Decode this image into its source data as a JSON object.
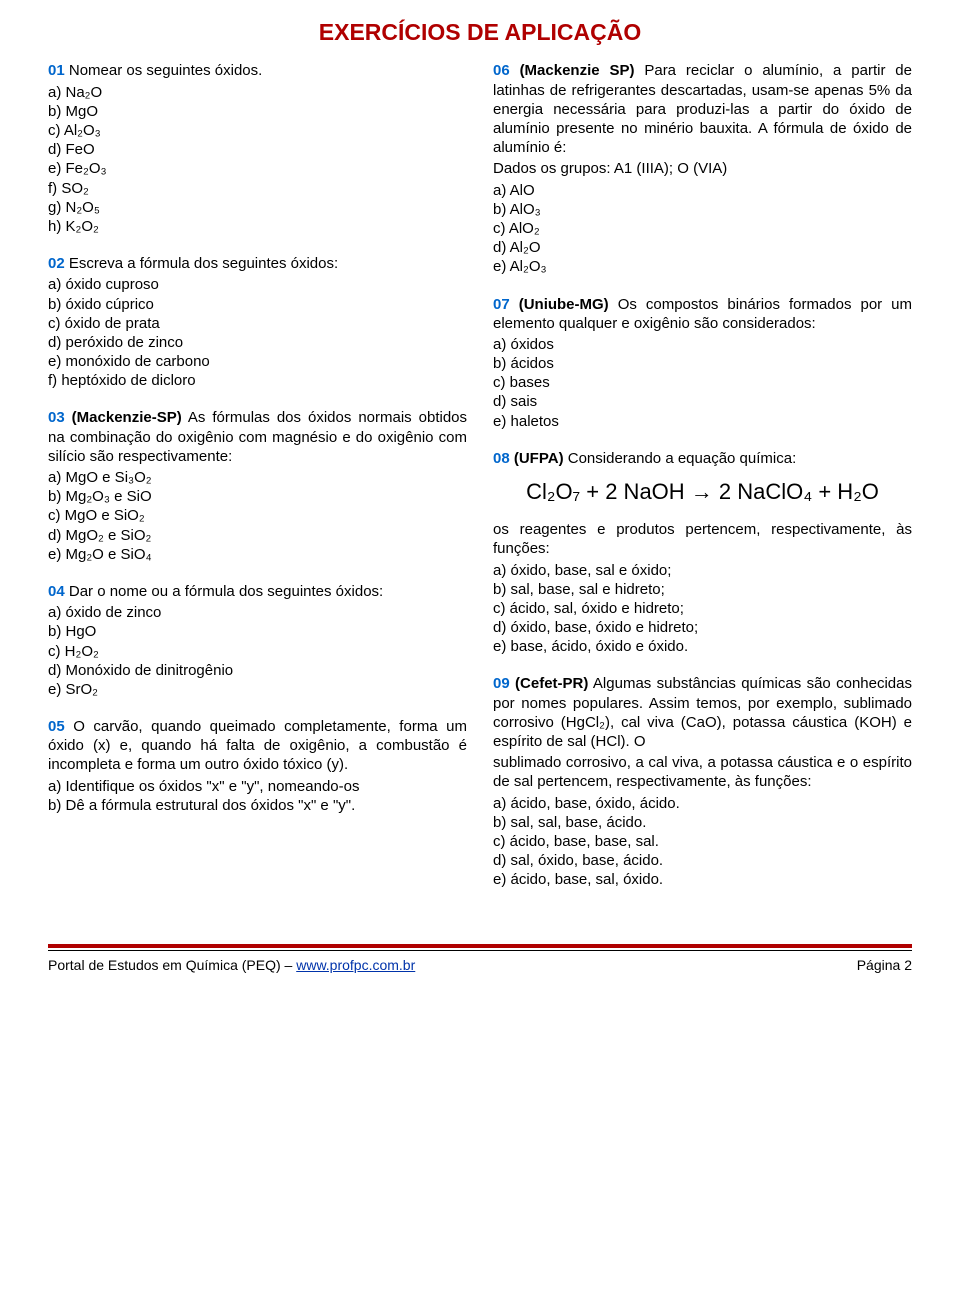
{
  "title": "EXERCÍCIOS DE APLICAÇÃO",
  "colors": {
    "title": "#b00000",
    "qnum": "#0066cc",
    "link": "#0033aa",
    "rule": "#b00000"
  },
  "left": {
    "q01": {
      "num": "01",
      "stem": "Nomear os seguintes óxidos.",
      "opts": [
        "a) Na₂O",
        "b) MgO",
        "c) Al₂O₃",
        "d) FeO",
        "e) Fe₂O₃",
        "f) SO₂",
        "g) N₂O₅",
        "h) K₂O₂"
      ]
    },
    "q02": {
      "num": "02",
      "stem": "Escreva a fórmula dos seguintes óxidos:",
      "opts": [
        "a) óxido cuproso",
        "b) óxido cúprico",
        "c) óxido de prata",
        "d) peróxido de zinco",
        "e) monóxido de carbono",
        "f) heptóxido de dicloro"
      ]
    },
    "q03": {
      "num": "03",
      "src": "(Mackenzie-SP)",
      "stem": "As fórmulas dos óxidos normais obtidos na combinação do oxigênio com magnésio e do oxigênio com silício são respectivamente:",
      "opts": [
        "a) MgO  e Si₃O₂",
        "b) Mg₂O₃ e SiO",
        "c) MgO  e SiO₂",
        "d) MgO₂ e SiO₂",
        "e) Mg₂O e SiO₄"
      ]
    },
    "q04": {
      "num": "04",
      "stem": "Dar o nome ou a fórmula dos seguintes óxidos:",
      "opts": [
        "a) óxido de zinco",
        "b) HgO",
        "c) H₂O₂",
        "d) Monóxido de dinitrogênio",
        "e) SrO₂"
      ]
    },
    "q05": {
      "num": "05",
      "stem": "O carvão, quando queimado completamente, forma um óxido (x) e, quando há falta de oxigênio, a combustão é incompleta e forma um outro óxido tóxico (y).",
      "opts": [
        "a) Identifique os óxidos \"x\" e \"y\", nomeando-os",
        "b) Dê a fórmula estrutural dos óxidos \"x\" e \"y\"."
      ]
    }
  },
  "right": {
    "q06": {
      "num": "06",
      "src": "(Mackenzie SP)",
      "stem": "Para reciclar o alumínio, a partir de latinhas de refrigerantes descartadas, usam-se apenas 5% da energia necessária para produzi-las a partir do óxido de alumínio presente no minério bauxita. A fórmula de óxido de alumínio é:",
      "dados": "Dados os grupos: A1 (IIIA); O (VIA)",
      "opts": [
        "a) AlO",
        "b) AlO₃",
        "c) AlO₂",
        "d) Al₂O",
        "e) Al₂O₃"
      ]
    },
    "q07": {
      "num": "07",
      "src": "(Uniube-MG)",
      "stem": "Os compostos binários formados por um elemento qualquer e oxigênio são considerados:",
      "opts": [
        "a) óxidos",
        "b) ácidos",
        "c) bases",
        "d) sais",
        "e) haletos"
      ]
    },
    "q08": {
      "num": "08",
      "src": "(UFPA)",
      "stem1": "Considerando a equação química:",
      "eqn": "Cl₂O₇ + 2 NaOH → 2 NaClO₄ + H₂O",
      "stem2": "os reagentes e produtos pertencem, respectivamente, às funções:",
      "opts": [
        "a) óxido, base, sal e óxido;",
        "b) sal, base, sal e hidreto;",
        "c) ácido, sal, óxido e hidreto;",
        "d) óxido, base, óxido e hidreto;",
        "e) base, ácido, óxido e óxido."
      ]
    },
    "q09": {
      "num": "09",
      "src": "(Cefet-PR)",
      "stem": "Algumas substâncias químicas são conhecidas por nomes populares. Assim temos, por exemplo, sublimado corrosivo (HgCl₂), cal viva (CaO), potassa cáustica (KOH) e espírito de sal (HCl). O",
      "stem2": "sublimado corrosivo, a cal viva, a potassa cáustica e o espírito de sal pertencem, respectivamente, às funções:",
      "opts": [
        "a) ácido, base, óxido, ácido.",
        "b) sal, sal, base, ácido.",
        "c) ácido, base, base, sal.",
        "d) sal, óxido, base, ácido.",
        "e) ácido, base, sal, óxido."
      ]
    }
  },
  "footer": {
    "left_a": "Portal de Estudos em Química (PEQ) – ",
    "left_b": "www.profpc.com.br",
    "right": "Página 2"
  }
}
